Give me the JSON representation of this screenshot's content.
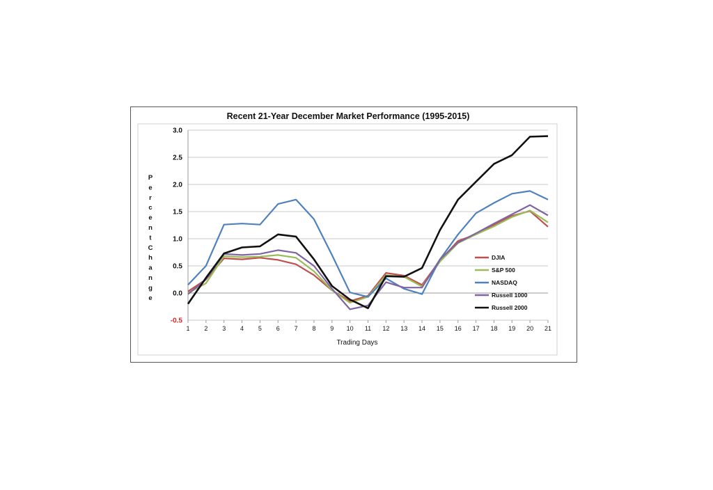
{
  "chart_data": {
    "type": "line",
    "title": "Recent 21-Year December Market Performance (1995-2015)",
    "xlabel": "Trading Days",
    "ylabel": "Percent Change",
    "x": [
      1,
      2,
      3,
      4,
      5,
      6,
      7,
      8,
      9,
      10,
      11,
      12,
      13,
      14,
      15,
      16,
      17,
      18,
      19,
      20,
      21
    ],
    "xlim": [
      1,
      21
    ],
    "ylim": [
      -0.5,
      3.0
    ],
    "yticks": [
      "3.0",
      "2.5",
      "2.0",
      "1.5",
      "1.0",
      "0.5",
      "0.0",
      "-0.5"
    ],
    "ytick_values": [
      3.0,
      2.5,
      2.0,
      1.5,
      1.0,
      0.5,
      0.0,
      -0.5
    ],
    "ytick_colors": [
      "#111111",
      "#111111",
      "#111111",
      "#111111",
      "#111111",
      "#111111",
      "#111111",
      "#e02020"
    ],
    "grid": "horizontal",
    "legend_position": "lower-right",
    "series": [
      {
        "name": "DJIA",
        "color": "#c0504d",
        "values": [
          0.03,
          0.25,
          0.64,
          0.62,
          0.65,
          0.61,
          0.53,
          0.33,
          0.05,
          -0.15,
          -0.05,
          0.37,
          0.32,
          0.15,
          0.6,
          0.96,
          1.08,
          1.25,
          1.42,
          1.51,
          1.22
        ]
      },
      {
        "name": "S&P 500",
        "color": "#9bbb59",
        "values": [
          0.0,
          0.18,
          0.68,
          0.66,
          0.67,
          0.7,
          0.65,
          0.4,
          0.05,
          -0.18,
          -0.07,
          0.33,
          0.3,
          0.12,
          0.58,
          0.92,
          1.08,
          1.23,
          1.4,
          1.52,
          1.3
        ]
      },
      {
        "name": "NASDAQ",
        "color": "#4f81bd",
        "values": [
          0.15,
          0.5,
          1.26,
          1.28,
          1.26,
          1.64,
          1.72,
          1.36,
          0.7,
          0.01,
          -0.07,
          0.27,
          0.08,
          -0.02,
          0.62,
          1.08,
          1.47,
          1.66,
          1.83,
          1.88,
          1.72
        ]
      },
      {
        "name": "Russell 1000",
        "color": "#8064a2",
        "values": [
          -0.02,
          0.25,
          0.72,
          0.7,
          0.72,
          0.79,
          0.74,
          0.5,
          0.08,
          -0.3,
          -0.23,
          0.2,
          0.1,
          0.1,
          0.62,
          0.93,
          1.1,
          1.28,
          1.45,
          1.62,
          1.43
        ]
      },
      {
        "name": "Russell 2000",
        "color": "#111111",
        "values": [
          -0.2,
          0.28,
          0.73,
          0.84,
          0.86,
          1.08,
          1.04,
          0.62,
          0.13,
          -0.12,
          -0.28,
          0.31,
          0.3,
          0.46,
          1.16,
          1.72,
          2.05,
          2.38,
          2.54,
          2.88,
          2.89
        ]
      }
    ]
  }
}
